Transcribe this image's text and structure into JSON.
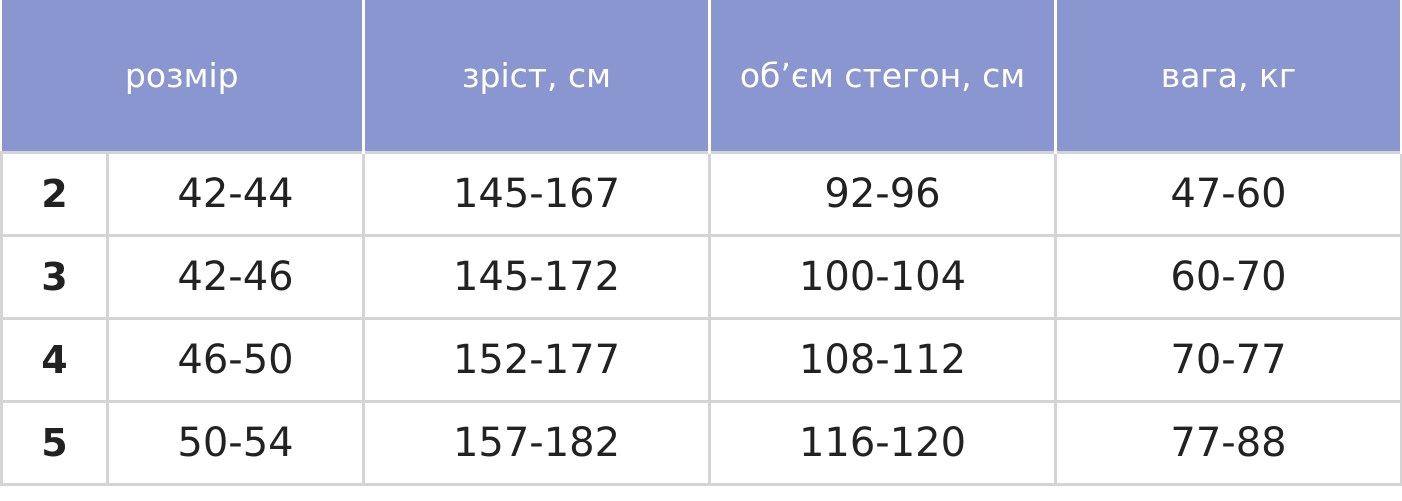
{
  "header_color": "#8a96cf",
  "table": {
    "headers": [
      "розмір",
      "зріст, см",
      "об’єм стегон, см",
      "вага, кг"
    ],
    "rows": [
      {
        "size": "2",
        "values": [
          "42-44",
          "145-167",
          "92-96",
          "47-60"
        ]
      },
      {
        "size": "3",
        "values": [
          "42-46",
          "145-172",
          "100-104",
          "60-70"
        ]
      },
      {
        "size": "4",
        "values": [
          "46-50",
          "152-177",
          "108-112",
          "70-77"
        ]
      },
      {
        "size": "5",
        "values": [
          "50-54",
          "157-182",
          "116-120",
          "77-88"
        ]
      }
    ]
  }
}
